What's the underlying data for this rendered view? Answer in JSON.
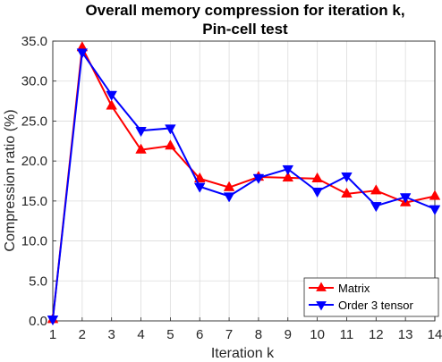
{
  "chart_data": {
    "type": "line",
    "title_line1": "Overall memory compression for iteration k,",
    "title_line2": "Pin-cell test",
    "xlabel": "Iteration k",
    "ylabel": "Compression ratio (%)",
    "x": [
      1,
      2,
      3,
      4,
      5,
      6,
      7,
      8,
      9,
      10,
      11,
      12,
      13,
      14
    ],
    "xlim": [
      1,
      14
    ],
    "ylim": [
      0,
      35
    ],
    "yticks": [
      "0.0",
      "5.0",
      "10.0",
      "15.0",
      "20.0",
      "25.0",
      "30.0",
      "35.0"
    ],
    "grid": true,
    "legend_position": "bottom-right",
    "series": [
      {
        "name": "Matrix",
        "color": "#ff0000",
        "marker": "triangle-up",
        "values": [
          0.2,
          34.2,
          26.9,
          21.4,
          21.9,
          17.8,
          16.7,
          18.0,
          17.9,
          17.8,
          15.9,
          16.3,
          14.8,
          15.6
        ]
      },
      {
        "name": "Order 3 tensor",
        "color": "#0000ff",
        "marker": "triangle-down",
        "values": [
          0.2,
          33.6,
          28.3,
          23.8,
          24.1,
          16.8,
          15.6,
          17.9,
          19.0,
          16.2,
          18.1,
          14.4,
          15.5,
          14.0
        ]
      }
    ]
  }
}
